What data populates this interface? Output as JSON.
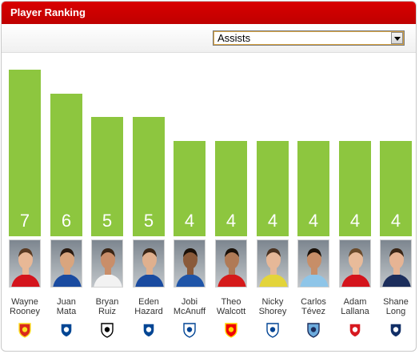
{
  "header": {
    "title": "Player Ranking"
  },
  "filter": {
    "selected": "Assists"
  },
  "chart_data": {
    "type": "bar",
    "categories": [
      "Wayne Rooney",
      "Juan Mata",
      "Bryan Ruiz",
      "Eden Hazard",
      "Jobi McAnuff",
      "Theo Walcott",
      "Nicky Shorey",
      "Carlos Tévez",
      "Adam Lallana",
      "Shane Long"
    ],
    "values": [
      7,
      6,
      5,
      5,
      4,
      4,
      4,
      4,
      4,
      4
    ],
    "ylim": [
      0,
      7
    ],
    "grid": false,
    "bar_color": "#8dc63f"
  },
  "players": [
    {
      "first": "Wayne",
      "last": "Rooney",
      "club": "manchester-united-crest-icon",
      "kit": "#d4141c",
      "skin": "#e8b896",
      "hair": "#5a3a22",
      "badge_color": "#da291c",
      "badge_accent": "#fbe122"
    },
    {
      "first": "Juan",
      "last": "Mata",
      "club": "chelsea-crest-icon",
      "kit": "#1a4ba0",
      "skin": "#d9a57e",
      "hair": "#2a1a10",
      "badge_color": "#034694",
      "badge_accent": "#ffffff"
    },
    {
      "first": "Bryan",
      "last": "Ruiz",
      "club": "fulham-crest-icon",
      "kit": "#f2f2f2",
      "skin": "#c98e6a",
      "hair": "#3a2515",
      "badge_color": "#ffffff",
      "badge_accent": "#000000"
    },
    {
      "first": "Eden",
      "last": "Hazard",
      "club": "chelsea-crest-icon",
      "kit": "#1a4ba0",
      "skin": "#e0b08e",
      "hair": "#3a2515",
      "badge_color": "#034694",
      "badge_accent": "#ffffff"
    },
    {
      "first": "Jobi",
      "last": "McAnuff",
      "club": "reading-crest-icon",
      "kit": "#1f55a8",
      "skin": "#8a5a3a",
      "hair": "#1a1008",
      "badge_color": "#ffffff",
      "badge_accent": "#004494"
    },
    {
      "first": "Theo",
      "last": "Walcott",
      "club": "arsenal-crest-icon",
      "kit": "#d51a1a",
      "skin": "#b07a56",
      "hair": "#1a1008",
      "badge_color": "#ef0107",
      "badge_accent": "#ffd700"
    },
    {
      "first": "Nicky",
      "last": "Shorey",
      "club": "reading-crest-icon",
      "kit": "#e3d43a",
      "skin": "#e6b898",
      "hair": "#4a3220",
      "badge_color": "#ffffff",
      "badge_accent": "#004494"
    },
    {
      "first": "Carlos",
      "last": "Tévez",
      "club": "manchester-city-crest-icon",
      "kit": "#8ec5e8",
      "skin": "#c78e68",
      "hair": "#1a1008",
      "badge_color": "#6cabdd",
      "badge_accent": "#1c2c5b"
    },
    {
      "first": "Adam",
      "last": "Lallana",
      "club": "southampton-crest-icon",
      "kit": "#d4141c",
      "skin": "#e8bb9a",
      "hair": "#6a4a2a",
      "badge_color": "#d71920",
      "badge_accent": "#ffffff"
    },
    {
      "first": "Shane",
      "last": "Long",
      "club": "west-brom-crest-icon",
      "kit": "#1c2e5c",
      "skin": "#e6b494",
      "hair": "#3a2515",
      "badge_color": "#122f67",
      "badge_accent": "#ffffff"
    }
  ]
}
